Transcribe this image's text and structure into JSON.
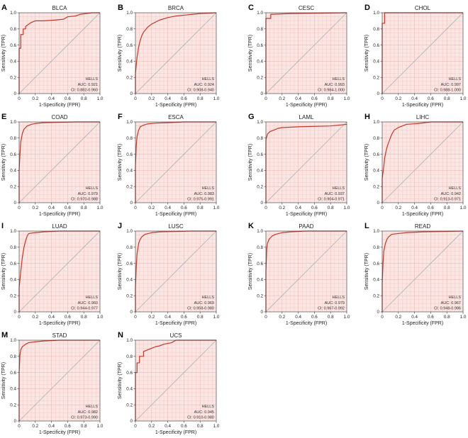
{
  "figure": {
    "xlabel": "1-Specificity (FPR)",
    "ylabel": "Sensitivity (TPR)",
    "legend_name": "HELLS",
    "ticks": [
      "0",
      "0.2",
      "0.4",
      "0.6",
      "0.8",
      "1.0"
    ],
    "colors": {
      "curve": "#c0392b",
      "fill": "#fbe6e4",
      "grid": "#f0b8b2",
      "diagonal": "#b0b0b0",
      "axis": "#333333"
    }
  },
  "chart_data": [
    {
      "type": "line",
      "panel_letter": "A",
      "title": "BLCA",
      "auc_text": "AUC: 0.921",
      "ci_text": "CI: 0.882-0.960",
      "xlabel": "1-Specificity (FPR)",
      "ylabel": "Sensitivity (TPR)",
      "xlim": [
        0,
        1
      ],
      "ylim": [
        0,
        1
      ],
      "series": [
        {
          "x": [
            0,
            0,
            0.02,
            0.02,
            0.05,
            0.05,
            0.08,
            0.08,
            0.12,
            0.15,
            0.2,
            0.3,
            0.45,
            0.55,
            0.6,
            0.7,
            0.75,
            0.9,
            1.0
          ],
          "y": [
            0,
            0.56,
            0.56,
            0.73,
            0.73,
            0.8,
            0.8,
            0.83,
            0.86,
            0.88,
            0.9,
            0.9,
            0.91,
            0.92,
            0.95,
            0.96,
            0.98,
            1.0,
            1.0
          ]
        }
      ]
    },
    {
      "type": "line",
      "panel_letter": "B",
      "title": "BRCA",
      "auc_text": "AUC: 0.924",
      "ci_text": "CI: 0.908-0.940",
      "xlabel": "1-Specificity (FPR)",
      "ylabel": "Sensitivity (TPR)",
      "xlim": [
        0,
        1
      ],
      "ylim": [
        0,
        1
      ],
      "series": [
        {
          "x": [
            0,
            0,
            0.02,
            0.04,
            0.06,
            0.08,
            0.1,
            0.15,
            0.2,
            0.3,
            0.4,
            0.5,
            0.6,
            0.7,
            0.8,
            1.0
          ],
          "y": [
            0,
            0.25,
            0.45,
            0.58,
            0.66,
            0.72,
            0.76,
            0.82,
            0.86,
            0.91,
            0.94,
            0.96,
            0.97,
            0.98,
            0.99,
            1.0
          ]
        }
      ]
    },
    {
      "type": "line",
      "panel_letter": "C",
      "title": "CESC",
      "auc_text": "AUC: 0.993",
      "ci_text": "CI: 0.984-1.000",
      "xlabel": "1-Specificity (FPR)",
      "ylabel": "Sensitivity (TPR)",
      "xlim": [
        0,
        1
      ],
      "ylim": [
        0,
        1
      ],
      "series": [
        {
          "x": [
            0,
            0,
            0.06,
            0.06,
            0.3,
            1.0
          ],
          "y": [
            0,
            0.93,
            0.93,
            0.98,
            0.99,
            1.0
          ]
        }
      ]
    },
    {
      "type": "line",
      "panel_letter": "D",
      "title": "CHOL",
      "auc_text": "AUC: 0.997",
      "ci_text": "CI: 0.988-1.000",
      "xlabel": "1-Specificity (FPR)",
      "ylabel": "Sensitivity (TPR)",
      "xlim": [
        0,
        1
      ],
      "ylim": [
        0,
        1
      ],
      "series": [
        {
          "x": [
            0,
            0,
            0.03,
            0.03,
            1.0
          ],
          "y": [
            0,
            0.87,
            0.87,
            1.0,
            1.0
          ]
        }
      ]
    },
    {
      "type": "line",
      "panel_letter": "E",
      "title": "COAD",
      "auc_text": "AUC: 0.979",
      "ci_text": "CI: 0.970-0.988",
      "xlabel": "1-Specificity (FPR)",
      "ylabel": "Sensitivity (TPR)",
      "xlim": [
        0,
        1
      ],
      "ylim": [
        0,
        1
      ],
      "series": [
        {
          "x": [
            0,
            0,
            0.01,
            0.02,
            0.04,
            0.06,
            0.1,
            0.15,
            0.2,
            0.3,
            0.5,
            0.7,
            1.0
          ],
          "y": [
            0,
            0.4,
            0.6,
            0.75,
            0.86,
            0.91,
            0.95,
            0.97,
            0.98,
            0.99,
            0.995,
            1.0,
            1.0
          ]
        }
      ]
    },
    {
      "type": "line",
      "panel_letter": "F",
      "title": "ESCA",
      "auc_text": "AUC: 0.983",
      "ci_text": "CI: 0.975-0.991",
      "xlabel": "1-Specificity (FPR)",
      "ylabel": "Sensitivity (TPR)",
      "xlim": [
        0,
        1
      ],
      "ylim": [
        0,
        1
      ],
      "series": [
        {
          "x": [
            0,
            0,
            0.01,
            0.02,
            0.04,
            0.06,
            0.1,
            0.15,
            0.25,
            0.4,
            0.6,
            1.0
          ],
          "y": [
            0,
            0.45,
            0.7,
            0.82,
            0.9,
            0.94,
            0.96,
            0.975,
            0.985,
            0.99,
            1.0,
            1.0
          ]
        }
      ]
    },
    {
      "type": "line",
      "panel_letter": "G",
      "title": "LAML",
      "auc_text": "AUC: 0.937",
      "ci_text": "CI: 0.904-0.971",
      "xlabel": "1-Specificity (FPR)",
      "ylabel": "Sensitivity (TPR)",
      "xlim": [
        0,
        1
      ],
      "ylim": [
        0,
        1
      ],
      "series": [
        {
          "x": [
            0,
            0,
            0.02,
            0.05,
            0.1,
            0.15,
            0.2,
            0.4,
            0.6,
            0.8,
            0.9,
            1.0
          ],
          "y": [
            0,
            0.78,
            0.85,
            0.88,
            0.9,
            0.92,
            0.93,
            0.94,
            0.945,
            0.95,
            0.96,
            0.97
          ]
        }
      ]
    },
    {
      "type": "line",
      "panel_letter": "H",
      "title": "LIHC",
      "auc_text": "AUC: 0.942",
      "ci_text": "CI: 0.913-0.971",
      "xlabel": "1-Specificity (FPR)",
      "ylabel": "Sensitivity (TPR)",
      "xlim": [
        0,
        1
      ],
      "ylim": [
        0,
        1
      ],
      "series": [
        {
          "x": [
            0,
            0,
            0.02,
            0.03,
            0.05,
            0.07,
            0.1,
            0.12,
            0.15,
            0.2,
            0.25,
            0.3,
            0.45,
            0.6,
            1.0
          ],
          "y": [
            0,
            0.3,
            0.45,
            0.55,
            0.65,
            0.72,
            0.8,
            0.85,
            0.9,
            0.93,
            0.95,
            0.97,
            0.98,
            1.0,
            1.0
          ]
        }
      ]
    },
    {
      "type": "line",
      "panel_letter": "I",
      "title": "LUAD",
      "auc_text": "AUC: 0.960",
      "ci_text": "CI: 0.944-0.977",
      "xlabel": "1-Specificity (FPR)",
      "ylabel": "Sensitivity (TPR)",
      "xlim": [
        0,
        1
      ],
      "ylim": [
        0,
        1
      ],
      "series": [
        {
          "x": [
            0,
            0,
            0.02,
            0.04,
            0.06,
            0.08,
            0.1,
            0.12,
            0.2,
            0.3,
            0.5,
            1.0
          ],
          "y": [
            0,
            0.3,
            0.5,
            0.68,
            0.8,
            0.88,
            0.94,
            0.97,
            0.98,
            0.99,
            1.0,
            1.0
          ]
        }
      ]
    },
    {
      "type": "line",
      "panel_letter": "J",
      "title": "LUSC",
      "auc_text": "AUC: 0.969",
      "ci_text": "CI: 0.958-0.980",
      "xlabel": "1-Specificity (FPR)",
      "ylabel": "Sensitivity (TPR)",
      "xlim": [
        0,
        1
      ],
      "ylim": [
        0,
        1
      ],
      "series": [
        {
          "x": [
            0,
            0,
            0.01,
            0.02,
            0.04,
            0.06,
            0.08,
            0.12,
            0.2,
            0.3,
            0.5,
            0.7,
            1.0
          ],
          "y": [
            0,
            0.3,
            0.55,
            0.72,
            0.85,
            0.9,
            0.93,
            0.96,
            0.98,
            0.99,
            0.995,
            1.0,
            1.0
          ]
        }
      ]
    },
    {
      "type": "line",
      "panel_letter": "K",
      "title": "PAAD",
      "auc_text": "AUC: 0.979",
      "ci_text": "CI: 0.967-0.992",
      "xlabel": "1-Specificity (FPR)",
      "ylabel": "Sensitivity (TPR)",
      "xlim": [
        0,
        1
      ],
      "ylim": [
        0,
        1
      ],
      "series": [
        {
          "x": [
            0,
            0,
            0.01,
            0.02,
            0.04,
            0.08,
            0.12,
            0.2,
            0.3,
            0.5,
            0.7,
            1.0
          ],
          "y": [
            0,
            0.5,
            0.78,
            0.85,
            0.9,
            0.94,
            0.96,
            0.98,
            0.99,
            1.0,
            1.0,
            1.0
          ]
        }
      ]
    },
    {
      "type": "line",
      "panel_letter": "L",
      "title": "READ",
      "auc_text": "AUC: 0.967",
      "ci_text": "CI: 0.948-0.986",
      "xlabel": "1-Specificity (FPR)",
      "ylabel": "Sensitivity (TPR)",
      "xlim": [
        0,
        1
      ],
      "ylim": [
        0,
        1
      ],
      "series": [
        {
          "x": [
            0,
            0,
            0.01,
            0.02,
            0.04,
            0.06,
            0.08,
            0.12,
            0.2,
            0.3,
            0.5,
            1.0
          ],
          "y": [
            0,
            0.35,
            0.6,
            0.75,
            0.85,
            0.9,
            0.93,
            0.96,
            0.97,
            0.98,
            0.99,
            1.0
          ]
        }
      ]
    },
    {
      "type": "line",
      "panel_letter": "M",
      "title": "STAD",
      "auc_text": "AUC: 0.982",
      "ci_text": "CI: 0.973-0.990",
      "xlabel": "1-Specificity (FPR)",
      "ylabel": "Sensitivity (TPR)",
      "xlim": [
        0,
        1
      ],
      "ylim": [
        0,
        1
      ],
      "series": [
        {
          "x": [
            0,
            0,
            0.01,
            0.02,
            0.04,
            0.08,
            0.12,
            0.2,
            0.3,
            0.5,
            1.0
          ],
          "y": [
            0,
            0.6,
            0.82,
            0.88,
            0.92,
            0.95,
            0.97,
            0.98,
            0.99,
            1.0,
            1.0
          ]
        }
      ]
    },
    {
      "type": "line",
      "panel_letter": "N",
      "title": "UCS",
      "auc_text": "AUC: 0.945",
      "ci_text": "CI: 0.910-0.980",
      "xlabel": "1-Specificity (FPR)",
      "ylabel": "Sensitivity (TPR)",
      "xlim": [
        0,
        1
      ],
      "ylim": [
        0,
        1
      ],
      "series": [
        {
          "x": [
            0,
            0,
            0.02,
            0.02,
            0.05,
            0.05,
            0.1,
            0.1,
            0.15,
            0.2,
            0.25,
            0.3,
            0.35,
            0.4,
            0.45,
            0.5,
            0.6,
            0.8,
            1.0
          ],
          "y": [
            0,
            0.6,
            0.6,
            0.72,
            0.72,
            0.8,
            0.8,
            0.86,
            0.88,
            0.9,
            0.92,
            0.93,
            0.95,
            0.96,
            0.97,
            1.0,
            1.0,
            1.0,
            1.0
          ]
        }
      ]
    }
  ]
}
